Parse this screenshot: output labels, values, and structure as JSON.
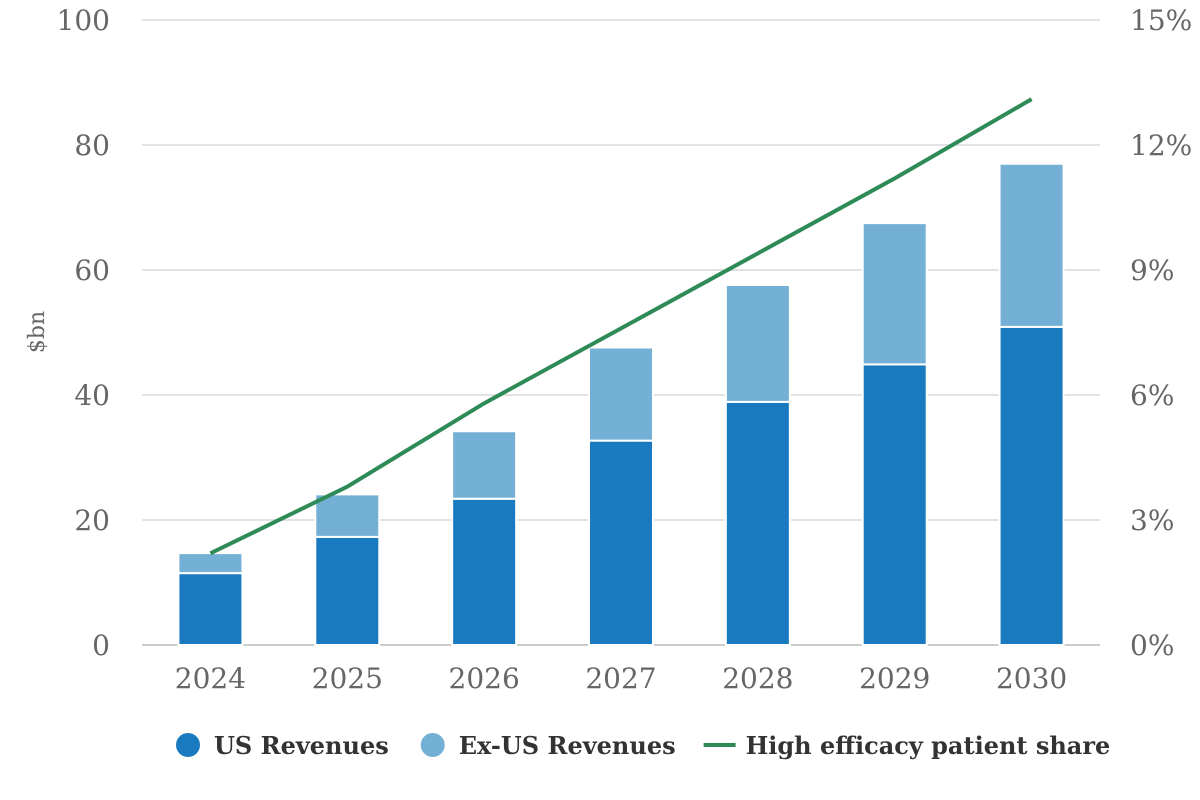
{
  "chart_data": {
    "type": "bar",
    "stacked": true,
    "categories": [
      "2024",
      "2025",
      "2026",
      "2027",
      "2028",
      "2029",
      "2030"
    ],
    "series": [
      {
        "name": "US Revenues",
        "type": "bar",
        "axis": "left",
        "color": "#1a7abf",
        "values": [
          11.5,
          17.3,
          23.4,
          32.7,
          38.9,
          44.9,
          50.9
        ]
      },
      {
        "name": "Ex-US Revenues",
        "type": "bar",
        "axis": "left",
        "color": "#74afd5",
        "values": [
          3.2,
          6.8,
          10.8,
          14.9,
          18.7,
          22.6,
          26.1
        ]
      },
      {
        "name": "High efficacy patient share",
        "type": "line",
        "axis": "right",
        "color": "#2e8b57",
        "values": [
          2.2,
          3.8,
          5.8,
          7.6,
          9.4,
          11.2,
          13.1
        ]
      }
    ],
    "ylabel": "$bn",
    "ylim": [
      0,
      100
    ],
    "yticks": [
      "0",
      "20",
      "40",
      "60",
      "80",
      "100"
    ],
    "y2lim": [
      0,
      15
    ],
    "y2ticks": [
      "0%",
      "3%",
      "6%",
      "9%",
      "12%",
      "15%"
    ],
    "grid": true,
    "legend_position": "bottom"
  }
}
